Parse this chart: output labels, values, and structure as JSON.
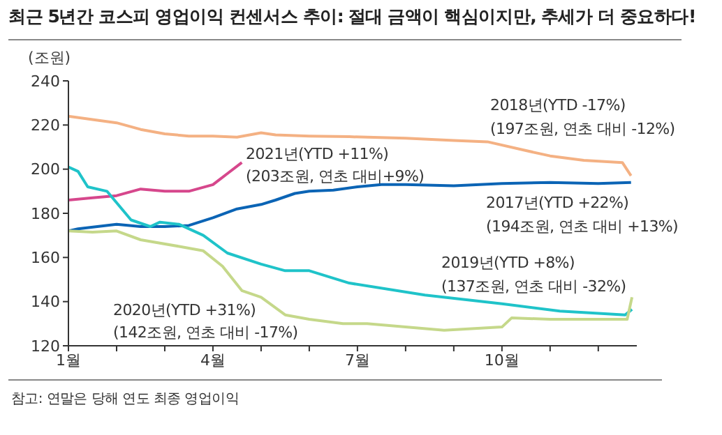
{
  "chart_data": {
    "type": "line",
    "title": "최근 5년간 코스피 영업이익 컨센서스 추이: 절대 금액이 핵심이지만, 추세가 더 중요하다!",
    "ylabel": "(조원)",
    "xlim": [
      1,
      12.8
    ],
    "xticks": [
      {
        "value": 1,
        "label": "1월"
      },
      {
        "value": 2,
        "label": null
      },
      {
        "value": 3,
        "label": null
      },
      {
        "value": 4,
        "label": "4월"
      },
      {
        "value": 5,
        "label": null
      },
      {
        "value": 6,
        "label": null
      },
      {
        "value": 7,
        "label": "7월"
      },
      {
        "value": 8,
        "label": null
      },
      {
        "value": 9,
        "label": null
      },
      {
        "value": 10,
        "label": "10월"
      },
      {
        "value": 11,
        "label": null
      },
      {
        "value": 12,
        "label": null
      }
    ],
    "ylim": [
      120,
      240
    ],
    "yticks": [
      120,
      140,
      160,
      180,
      200,
      220,
      240
    ],
    "marker": "none",
    "line_style": "solid",
    "series": [
      {
        "color": "#f4b183",
        "x": [
          1,
          1.5,
          2,
          2.5,
          3,
          3.5,
          4,
          4.5,
          5,
          5.3,
          6,
          6.83,
          8,
          9,
          9.7,
          10.5,
          11,
          11.7,
          12.5,
          12.68
        ],
        "values": [
          224,
          222.5,
          221,
          218,
          216,
          215,
          215,
          214.5,
          216.5,
          215.5,
          215,
          214.7,
          214,
          213,
          212.4,
          208.4,
          206,
          204,
          203,
          197
        ]
      },
      {
        "color": "#0b64b5",
        "x": [
          1,
          1.2,
          2,
          2.5,
          3,
          3.5,
          4,
          4.5,
          5,
          5.3,
          5.7,
          6,
          6.5,
          7,
          7.5,
          8,
          9,
          10,
          11,
          12,
          12.68
        ],
        "values": [
          172,
          173,
          175,
          174,
          174,
          174.5,
          178,
          182,
          184,
          186,
          189,
          190,
          190.5,
          192,
          193,
          193,
          192.5,
          193.5,
          194,
          193.5,
          194
        ]
      },
      {
        "color": "#d6478c",
        "x": [
          1,
          1.5,
          2,
          2.5,
          3,
          3.5,
          4,
          4.3,
          4.6
        ],
        "values": [
          186,
          187,
          188,
          191,
          190,
          190,
          193,
          198,
          203
        ]
      },
      {
        "color": "#1fc3c9",
        "x": [
          1,
          1.2,
          1.4,
          1.8,
          2.3,
          2.7,
          2.9,
          3.3,
          3.8,
          4.3,
          5,
          5.5,
          6,
          6.83,
          8.4,
          10,
          11.2,
          12.56,
          12.7
        ],
        "values": [
          201,
          199,
          192,
          190,
          177,
          174,
          176,
          175,
          170,
          162,
          157,
          154,
          154,
          148.4,
          143,
          139,
          135.7,
          134,
          136.5
        ]
      },
      {
        "color": "#c5d88a",
        "x": [
          1,
          1.5,
          2,
          2.5,
          3.3,
          3.8,
          4.2,
          4.6,
          5,
          5.5,
          6,
          6.7,
          7.2,
          8.8,
          10,
          10.2,
          11,
          12,
          12.6,
          12.7
        ],
        "values": [
          172,
          171.5,
          172,
          168,
          165,
          163,
          156,
          145,
          142,
          134,
          132,
          130,
          130,
          127,
          128.5,
          132.6,
          132,
          132,
          132,
          142
        ]
      }
    ],
    "annotations": [
      "2021년(YTD +11%)",
      "(203조원, 연초 대비+9%)",
      "2018년(YTD -17%)",
      "(197조원, 연초 대비 -12%)",
      "2017년(YTD +22%)",
      "(194조원, 연초 대비 +13%)",
      "2019년(YTD +8%)",
      "(137조원, 연초 대비 -32%)",
      "2020년(YTD +31%)",
      "(142조원, 연초 대비 -17%)",
      "참고: 연말은 당해 연도 최종 영업이익"
    ]
  }
}
